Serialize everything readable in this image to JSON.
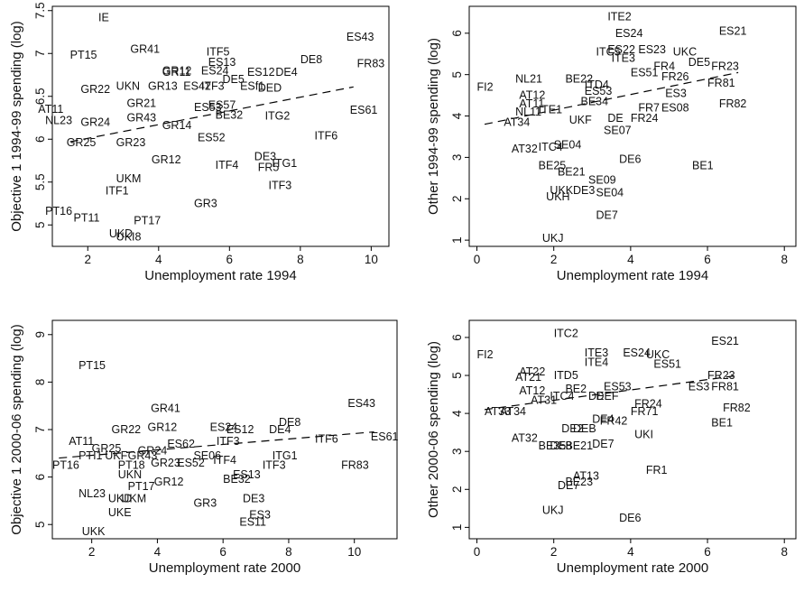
{
  "chart_data": [
    {
      "type": "scatter",
      "xlabel": "Unemployment rate 1994",
      "ylabel": "Objective 1 1994-99 spending (log)",
      "xlim": [
        1,
        10.5
      ],
      "ylim": [
        4.75,
        7.55
      ],
      "xticks": [
        2,
        4,
        6,
        8,
        10
      ],
      "yticks": [
        5,
        5.5,
        6,
        6.5,
        7,
        7.5
      ],
      "grid": false,
      "fit_line": {
        "x": [
          1.5,
          9.5
        ],
        "y": [
          5.97,
          6.61
        ],
        "style": "dashed"
      },
      "points": [
        {
          "label": "IE",
          "x": 2.3,
          "y": 7.42
        },
        {
          "label": "PT15",
          "x": 1.5,
          "y": 6.98
        },
        {
          "label": "GR41",
          "x": 3.2,
          "y": 7.05
        },
        {
          "label": "ITF5",
          "x": 5.35,
          "y": 7.02
        },
        {
          "label": "ES43",
          "x": 9.3,
          "y": 7.19
        },
        {
          "label": "FR83",
          "x": 9.6,
          "y": 6.88
        },
        {
          "label": "DE8",
          "x": 8.0,
          "y": 6.93
        },
        {
          "label": "ES13",
          "x": 5.4,
          "y": 6.9
        },
        {
          "label": "GR11",
          "x": 4.1,
          "y": 6.78
        },
        {
          "label": "GR12",
          "x": 4.1,
          "y": 6.8
        },
        {
          "label": "ES24",
          "x": 5.2,
          "y": 6.8
        },
        {
          "label": "ES12",
          "x": 6.5,
          "y": 6.78
        },
        {
          "label": "DE4",
          "x": 7.3,
          "y": 6.78
        },
        {
          "label": "DE5",
          "x": 5.8,
          "y": 6.7
        },
        {
          "label": "ESf1",
          "x": 6.3,
          "y": 6.62
        },
        {
          "label": "DED",
          "x": 6.8,
          "y": 6.6
        },
        {
          "label": "GR22",
          "x": 1.8,
          "y": 6.58
        },
        {
          "label": "UKN",
          "x": 2.8,
          "y": 6.62
        },
        {
          "label": "GR13",
          "x": 3.7,
          "y": 6.62
        },
        {
          "label": "ES42",
          "x": 4.7,
          "y": 6.62
        },
        {
          "label": "ITF3",
          "x": 5.2,
          "y": 6.62
        },
        {
          "label": "GR21",
          "x": 3.1,
          "y": 6.42
        },
        {
          "label": "ES53",
          "x": 5.0,
          "y": 6.37
        },
        {
          "label": "ES57",
          "x": 5.4,
          "y": 6.4
        },
        {
          "label": "AT11",
          "x": 0.6,
          "y": 6.35
        },
        {
          "label": "NL23",
          "x": 0.8,
          "y": 6.22
        },
        {
          "label": "GR24",
          "x": 1.8,
          "y": 6.2
        },
        {
          "label": "GR43",
          "x": 3.1,
          "y": 6.25
        },
        {
          "label": "BE32",
          "x": 5.6,
          "y": 6.28
        },
        {
          "label": "ITG2",
          "x": 7.0,
          "y": 6.27
        },
        {
          "label": "ES61",
          "x": 9.4,
          "y": 6.34
        },
        {
          "label": "GR14",
          "x": 4.1,
          "y": 6.16
        },
        {
          "label": "ES52",
          "x": 5.1,
          "y": 6.02
        },
        {
          "label": "ITF6",
          "x": 8.4,
          "y": 6.04
        },
        {
          "label": "GR25",
          "x": 1.4,
          "y": 5.96
        },
        {
          "label": "GR23",
          "x": 2.8,
          "y": 5.96
        },
        {
          "label": "GR12",
          "x": 3.8,
          "y": 5.76
        },
        {
          "label": "DE3",
          "x": 6.7,
          "y": 5.8
        },
        {
          "label": "ITG1",
          "x": 7.2,
          "y": 5.72
        },
        {
          "label": "ITF4",
          "x": 5.6,
          "y": 5.7
        },
        {
          "label": "FR5",
          "x": 6.8,
          "y": 5.67
        },
        {
          "label": "UKM",
          "x": 2.8,
          "y": 5.54
        },
        {
          "label": "ITF3",
          "x": 7.1,
          "y": 5.46
        },
        {
          "label": "ITF1",
          "x": 2.5,
          "y": 5.4
        },
        {
          "label": "GR3",
          "x": 5.0,
          "y": 5.25
        },
        {
          "label": "PT16",
          "x": 0.8,
          "y": 5.16
        },
        {
          "label": "PT11",
          "x": 1.6,
          "y": 5.08
        },
        {
          "label": "PT17",
          "x": 3.3,
          "y": 5.05
        },
        {
          "label": "UKD",
          "x": 2.6,
          "y": 4.9
        },
        {
          "label": "UKI8",
          "x": 2.8,
          "y": 4.86
        }
      ]
    },
    {
      "type": "scatter",
      "xlabel": "Unemployment rate 1994",
      "ylabel": "Other 1994-99 spending (log)",
      "xlim": [
        -0.2,
        8.3
      ],
      "ylim": [
        0.85,
        6.65
      ],
      "xticks": [
        0,
        2,
        4,
        6,
        8
      ],
      "yticks": [
        1,
        2,
        3,
        4,
        5,
        6
      ],
      "grid": false,
      "fit_line": {
        "x": [
          0.2,
          6.8
        ],
        "y": [
          3.8,
          5.05
        ],
        "style": "dashed"
      },
      "points": [
        {
          "label": "ITE2",
          "x": 3.4,
          "y": 6.4
        },
        {
          "label": "ES24",
          "x": 3.6,
          "y": 6.0
        },
        {
          "label": "ES21",
          "x": 6.3,
          "y": 6.05
        },
        {
          "label": "ITC5",
          "x": 3.1,
          "y": 5.55
        },
        {
          "label": "ES22",
          "x": 3.4,
          "y": 5.6
        },
        {
          "label": "ES23",
          "x": 4.2,
          "y": 5.6
        },
        {
          "label": "UKC",
          "x": 5.1,
          "y": 5.55
        },
        {
          "label": "ITE3",
          "x": 3.5,
          "y": 5.4
        },
        {
          "label": "FR4",
          "x": 4.6,
          "y": 5.2
        },
        {
          "label": "DE5",
          "x": 5.5,
          "y": 5.3
        },
        {
          "label": "FR23",
          "x": 6.1,
          "y": 5.2
        },
        {
          "label": "ES51",
          "x": 4.0,
          "y": 5.05
        },
        {
          "label": "FR26",
          "x": 4.8,
          "y": 4.95
        },
        {
          "label": "FR81",
          "x": 6.0,
          "y": 4.8
        },
        {
          "label": "FI2",
          "x": 0.0,
          "y": 4.7
        },
        {
          "label": "NL21",
          "x": 1.0,
          "y": 4.9
        },
        {
          "label": "BE22",
          "x": 2.3,
          "y": 4.9
        },
        {
          "label": "ITD4",
          "x": 2.8,
          "y": 4.75
        },
        {
          "label": "ES53",
          "x": 2.8,
          "y": 4.6
        },
        {
          "label": "BE34",
          "x": 2.7,
          "y": 4.35
        },
        {
          "label": "ES3",
          "x": 4.9,
          "y": 4.55
        },
        {
          "label": "AT12",
          "x": 1.1,
          "y": 4.5
        },
        {
          "label": "AT11",
          "x": 1.1,
          "y": 4.3
        },
        {
          "label": "FR7",
          "x": 4.2,
          "y": 4.2
        },
        {
          "label": "ES08",
          "x": 4.8,
          "y": 4.2
        },
        {
          "label": "FR82",
          "x": 6.3,
          "y": 4.3
        },
        {
          "label": "NL11",
          "x": 1.0,
          "y": 4.1
        },
        {
          "label": "ITE1",
          "x": 1.6,
          "y": 4.15
        },
        {
          "label": "FR24",
          "x": 4.0,
          "y": 3.95
        },
        {
          "label": "AT34",
          "x": 0.7,
          "y": 3.85
        },
        {
          "label": "UKF",
          "x": 2.4,
          "y": 3.9
        },
        {
          "label": "DE",
          "x": 3.4,
          "y": 3.95
        },
        {
          "label": "SE07",
          "x": 3.3,
          "y": 3.65
        },
        {
          "label": "AT32",
          "x": 0.9,
          "y": 3.2
        },
        {
          "label": "ITC4",
          "x": 1.6,
          "y": 3.25
        },
        {
          "label": "SE04",
          "x": 2.0,
          "y": 3.3
        },
        {
          "label": "DE6",
          "x": 3.7,
          "y": 2.95
        },
        {
          "label": "BE25",
          "x": 1.6,
          "y": 2.8
        },
        {
          "label": "BE21",
          "x": 2.1,
          "y": 2.65
        },
        {
          "label": "SE09",
          "x": 2.9,
          "y": 2.45
        },
        {
          "label": "UKK",
          "x": 1.9,
          "y": 2.2
        },
        {
          "label": "DE3",
          "x": 2.5,
          "y": 2.2
        },
        {
          "label": "SE04",
          "x": 3.1,
          "y": 2.15
        },
        {
          "label": "UKH",
          "x": 1.8,
          "y": 2.05
        },
        {
          "label": "BE1",
          "x": 5.6,
          "y": 2.8
        },
        {
          "label": "DE7",
          "x": 3.1,
          "y": 1.6
        },
        {
          "label": "UKJ",
          "x": 1.7,
          "y": 1.05
        }
      ]
    },
    {
      "type": "scatter",
      "xlabel": "Unemployment rate 2000",
      "ylabel": "Objective 1 2000-06 spending (log)",
      "xlim": [
        0.8,
        11.3
      ],
      "ylim": [
        4.7,
        9.3
      ],
      "xticks": [
        2,
        4,
        6,
        8,
        10
      ],
      "yticks": [
        5,
        6,
        7,
        8,
        9
      ],
      "grid": false,
      "fit_line": {
        "x": [
          1.0,
          10.6
        ],
        "y": [
          6.4,
          6.95
        ],
        "style": "dashed"
      },
      "points": [
        {
          "label": "PT15",
          "x": 1.6,
          "y": 8.35
        },
        {
          "label": "GR41",
          "x": 3.8,
          "y": 7.45
        },
        {
          "label": "ES43",
          "x": 9.8,
          "y": 7.55
        },
        {
          "label": "DE8",
          "x": 7.7,
          "y": 7.15
        },
        {
          "label": "GR22",
          "x": 2.6,
          "y": 7.0
        },
        {
          "label": "GR12",
          "x": 3.7,
          "y": 7.05
        },
        {
          "label": "ES24",
          "x": 5.6,
          "y": 7.05
        },
        {
          "label": "ES12",
          "x": 6.1,
          "y": 7.0
        },
        {
          "label": "DE4",
          "x": 7.4,
          "y": 7.0
        },
        {
          "label": "AT11",
          "x": 1.3,
          "y": 6.75
        },
        {
          "label": "GR25",
          "x": 2.0,
          "y": 6.6
        },
        {
          "label": "ITF6",
          "x": 8.8,
          "y": 6.8
        },
        {
          "label": "ES61",
          "x": 10.5,
          "y": 6.85
        },
        {
          "label": "ES62",
          "x": 4.3,
          "y": 6.7
        },
        {
          "label": "GR43",
          "x": 3.1,
          "y": 6.45
        },
        {
          "label": "GR24",
          "x": 3.4,
          "y": 6.55
        },
        {
          "label": "ITF3",
          "x": 5.8,
          "y": 6.75
        },
        {
          "label": "SE06",
          "x": 5.1,
          "y": 6.45
        },
        {
          "label": "PT16",
          "x": 0.8,
          "y": 6.25
        },
        {
          "label": "PTI1",
          "x": 1.6,
          "y": 6.45
        },
        {
          "label": "UKF",
          "x": 2.4,
          "y": 6.45
        },
        {
          "label": "ITG1",
          "x": 7.5,
          "y": 6.45
        },
        {
          "label": "PT18",
          "x": 2.8,
          "y": 6.25
        },
        {
          "label": "GR23",
          "x": 3.8,
          "y": 6.3
        },
        {
          "label": "ES52",
          "x": 4.6,
          "y": 6.3
        },
        {
          "label": "ITF4",
          "x": 5.7,
          "y": 6.35
        },
        {
          "label": "ITF3",
          "x": 7.2,
          "y": 6.25
        },
        {
          "label": "FR83",
          "x": 9.6,
          "y": 6.25
        },
        {
          "label": "UKN",
          "x": 2.8,
          "y": 6.05
        },
        {
          "label": "GR12",
          "x": 3.9,
          "y": 5.9
        },
        {
          "label": "BE32",
          "x": 6.0,
          "y": 5.95
        },
        {
          "label": "ES13",
          "x": 6.3,
          "y": 6.05
        },
        {
          "label": "PT17",
          "x": 3.1,
          "y": 5.8
        },
        {
          "label": "NL23",
          "x": 1.6,
          "y": 5.65
        },
        {
          "label": "UKD",
          "x": 2.5,
          "y": 5.55
        },
        {
          "label": "UKM",
          "x": 2.9,
          "y": 5.55
        },
        {
          "label": "GR3",
          "x": 5.1,
          "y": 5.45
        },
        {
          "label": "DE3",
          "x": 6.6,
          "y": 5.55
        },
        {
          "label": "UKE",
          "x": 2.5,
          "y": 5.25
        },
        {
          "label": "ES3",
          "x": 6.8,
          "y": 5.2
        },
        {
          "label": "ES11",
          "x": 6.5,
          "y": 5.05
        },
        {
          "label": "UKK",
          "x": 1.7,
          "y": 4.85
        }
      ]
    },
    {
      "type": "scatter",
      "xlabel": "Unemployment rate 2000",
      "ylabel": "Other 2000-06 spending (log)",
      "xlim": [
        -0.2,
        8.3
      ],
      "ylim": [
        0.7,
        6.45
      ],
      "xticks": [
        0,
        2,
        4,
        6,
        8
      ],
      "yticks": [
        1,
        2,
        3,
        4,
        5,
        6
      ],
      "grid": false,
      "fit_line": {
        "x": [
          0.2,
          6.8
        ],
        "y": [
          4.1,
          5.0
        ],
        "style": "dashed"
      },
      "points": [
        {
          "label": "ITC2",
          "x": 2.0,
          "y": 6.1
        },
        {
          "label": "ES21",
          "x": 6.1,
          "y": 5.9
        },
        {
          "label": "FI2",
          "x": 0.0,
          "y": 5.55
        },
        {
          "label": "ITE3",
          "x": 2.8,
          "y": 5.6
        },
        {
          "label": "ES24",
          "x": 3.8,
          "y": 5.6
        },
        {
          "label": "UKC",
          "x": 4.4,
          "y": 5.55
        },
        {
          "label": "ES51",
          "x": 4.6,
          "y": 5.3
        },
        {
          "label": "ITE4",
          "x": 2.8,
          "y": 5.35
        },
        {
          "label": "AT22",
          "x": 1.1,
          "y": 5.1
        },
        {
          "label": "ITD5",
          "x": 2.0,
          "y": 5.0
        },
        {
          "label": "FR23",
          "x": 6.0,
          "y": 5.0
        },
        {
          "label": "AT21",
          "x": 1.0,
          "y": 4.95
        },
        {
          "label": "ES53",
          "x": 3.3,
          "y": 4.7
        },
        {
          "label": "ES3",
          "x": 5.5,
          "y": 4.7
        },
        {
          "label": "FR81",
          "x": 6.1,
          "y": 4.7
        },
        {
          "label": "AT12",
          "x": 1.1,
          "y": 4.6
        },
        {
          "label": "BE2",
          "x": 2.3,
          "y": 4.65
        },
        {
          "label": "DE",
          "x": 2.9,
          "y": 4.45
        },
        {
          "label": "DEF",
          "x": 3.1,
          "y": 4.45
        },
        {
          "label": "AT31",
          "x": 1.4,
          "y": 4.35
        },
        {
          "label": "ITC4",
          "x": 1.9,
          "y": 4.45
        },
        {
          "label": "FR24",
          "x": 4.1,
          "y": 4.25
        },
        {
          "label": "FR71",
          "x": 4.0,
          "y": 4.05
        },
        {
          "label": "FR82",
          "x": 6.4,
          "y": 4.15
        },
        {
          "label": "AT33",
          "x": 0.2,
          "y": 4.05
        },
        {
          "label": "AT34",
          "x": 0.6,
          "y": 4.05
        },
        {
          "label": "DE4",
          "x": 3.0,
          "y": 3.85
        },
        {
          "label": "FR42",
          "x": 3.2,
          "y": 3.8
        },
        {
          "label": "BE1",
          "x": 6.1,
          "y": 3.75
        },
        {
          "label": "DE2",
          "x": 2.2,
          "y": 3.6
        },
        {
          "label": "DEB",
          "x": 2.5,
          "y": 3.6
        },
        {
          "label": "UKI",
          "x": 4.1,
          "y": 3.45
        },
        {
          "label": "AT32",
          "x": 0.9,
          "y": 3.35
        },
        {
          "label": "BE35",
          "x": 1.6,
          "y": 3.15
        },
        {
          "label": "DE8",
          "x": 1.9,
          "y": 3.15
        },
        {
          "label": "BE21",
          "x": 2.3,
          "y": 3.15
        },
        {
          "label": "DE7",
          "x": 3.0,
          "y": 3.2
        },
        {
          "label": "FR1",
          "x": 4.4,
          "y": 2.5
        },
        {
          "label": "AT13",
          "x": 2.5,
          "y": 2.35
        },
        {
          "label": "BE23",
          "x": 2.3,
          "y": 2.2
        },
        {
          "label": "DE7",
          "x": 2.1,
          "y": 2.1
        },
        {
          "label": "UKJ",
          "x": 1.7,
          "y": 1.45
        },
        {
          "label": "DE6",
          "x": 3.7,
          "y": 1.25
        }
      ]
    }
  ]
}
